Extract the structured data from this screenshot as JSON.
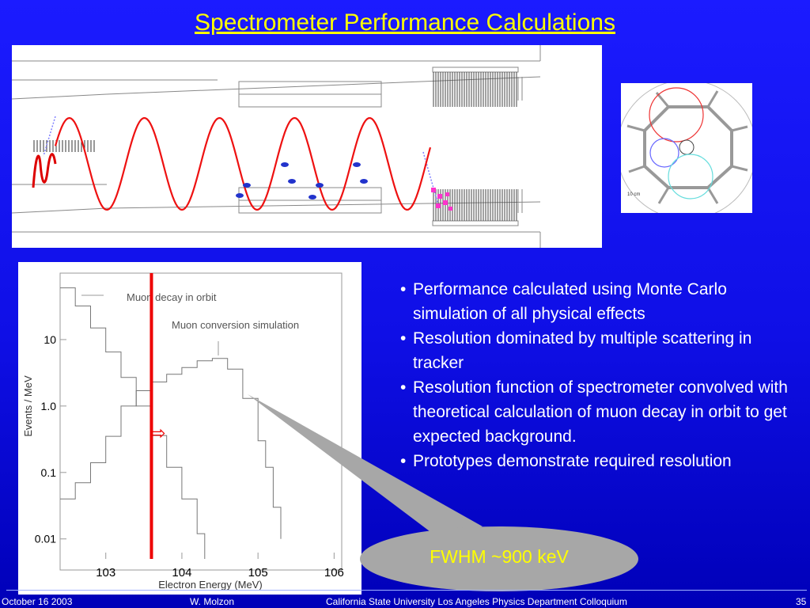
{
  "slide": {
    "title": "Spectrometer Performance Calculations",
    "bullets": [
      "Performance calculated using Monte Carlo simulation of all physical effects",
      "Resolution dominated by multiple scattering in tracker",
      "Resolution function of spectrometer convolved with theoretical calculation of muon decay in orbit to get expected background.",
      "Prototypes demonstrate required resolution"
    ],
    "callout": "FWHM ~900 keV",
    "footer": {
      "date": "October 16 2003",
      "author": "W. Molzon",
      "venue": "California State University Los Angeles Physics Department  Colloquium",
      "page": "35"
    }
  },
  "crosssection": {
    "scale_label": "10 cm"
  },
  "chart_data": {
    "type": "line",
    "xlabel": "Electron Energy (MeV)",
    "ylabel": "Events / MeV",
    "xlim": [
      102.4,
      106.1
    ],
    "ylim": [
      0.005,
      100
    ],
    "y_scale": "log",
    "x_ticks": [
      "103",
      "104",
      "105",
      "106"
    ],
    "y_ticks": [
      "0.01",
      "0.1",
      "1.0",
      "10"
    ],
    "annotations": [
      "Muon decay in orbit",
      "Muon conversion simulation"
    ],
    "cut_line": 103.6,
    "cut_marker": "⇨",
    "series": [
      {
        "x": [
          102.4,
          102.6,
          102.8,
          103.0,
          103.2,
          103.4,
          103.6,
          103.8,
          104.0,
          104.2,
          104.3
        ],
        "y": [
          60,
          32,
          15,
          6.5,
          2.7,
          1.0,
          0.36,
          0.12,
          0.04,
          0.012,
          0.005
        ]
      },
      {
        "x": [
          102.4,
          102.6,
          102.8,
          103.0,
          103.2,
          103.4,
          103.6,
          103.8,
          104.0,
          104.2,
          104.4,
          104.6,
          104.8,
          105.0,
          105.1,
          105.2,
          105.3
        ],
        "y": [
          0.04,
          0.07,
          0.14,
          0.35,
          1.0,
          1.7,
          2.3,
          3.0,
          3.8,
          4.8,
          5.2,
          3.6,
          1.3,
          0.3,
          0.12,
          0.03,
          0.01
        ]
      }
    ]
  }
}
